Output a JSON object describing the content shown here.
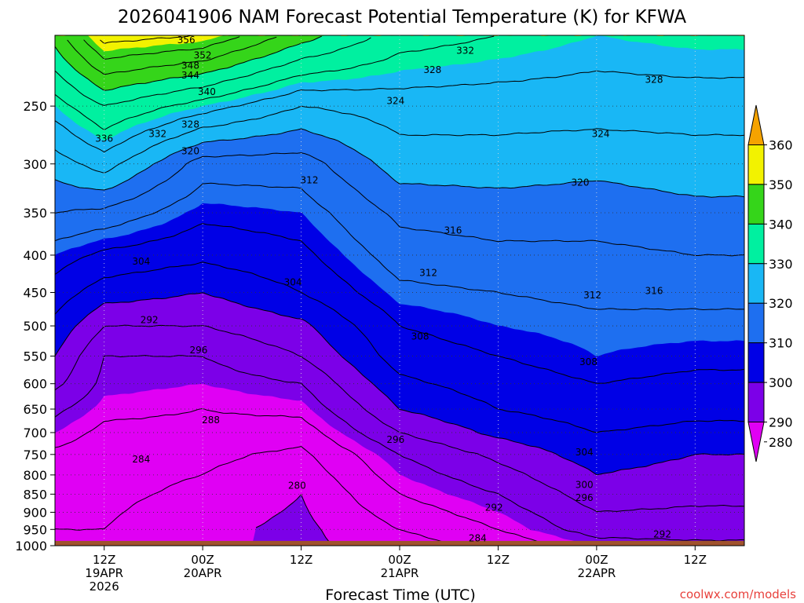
{
  "chart_data": {
    "type": "heatmap",
    "title": "2026041906 NAM Forecast Potential Temperature (K) for KFWA",
    "xlabel": "Forecast Time (UTC)",
    "ylabel": "",
    "credit": "coolwx.com/models",
    "y_scale": "log-pressure",
    "ylim_hpa": [
      1000,
      200
    ],
    "grid": true,
    "pressure_ticks": [
      "250",
      "300",
      "350",
      "400",
      "450",
      "500",
      "550",
      "600",
      "650",
      "700",
      "750",
      "800",
      "850",
      "900",
      "950",
      "1000"
    ],
    "pressure_values": [
      250,
      300,
      350,
      400,
      450,
      500,
      550,
      600,
      650,
      700,
      750,
      800,
      850,
      900,
      950,
      1000
    ],
    "time_ticks": [
      {
        "line1": "12Z",
        "line2": "19APR",
        "line3": "2026",
        "hour": 6
      },
      {
        "line1": "00Z",
        "line2": "20APR",
        "line3": "",
        "hour": 18
      },
      {
        "line1": "12Z",
        "line2": "",
        "line3": "",
        "hour": 30
      },
      {
        "line1": "00Z",
        "line2": "21APR",
        "line3": "",
        "hour": 42
      },
      {
        "line1": "12Z",
        "line2": "",
        "line3": "",
        "hour": 54
      },
      {
        "line1": "00Z",
        "line2": "22APR",
        "line3": "",
        "hour": 66
      },
      {
        "line1": "12Z",
        "line2": "",
        "line3": "",
        "hour": 78
      }
    ],
    "x_range_hours": [
      0,
      84
    ],
    "colorbar": {
      "labels": [
        "360",
        "350",
        "340",
        "330",
        "320",
        "310",
        "300",
        "290",
        "280"
      ],
      "levels": [
        280,
        290,
        300,
        310,
        320,
        330,
        340,
        350,
        360
      ],
      "colors": [
        "#e000f4",
        "#7c00e8",
        "#0000e6",
        "#1e6ff0",
        "#19b7f5",
        "#00f0a0",
        "#35d51a",
        "#f2f200",
        "#f5a300"
      ]
    },
    "contour_interval_K": 4,
    "theta_profiles_K": [
      {
        "hour": 0,
        "p": [
          1000,
          950,
          850,
          750,
          700,
          650,
          600,
          550,
          500,
          450,
          400,
          350,
          300,
          250,
          200
        ],
        "theta": [
          282,
          284,
          285,
          287,
          290,
          293,
          297,
          300,
          303,
          306,
          310,
          316,
          322,
          330,
          342
        ]
      },
      {
        "hour": 6,
        "p": [
          1000,
          950,
          850,
          750,
          700,
          650,
          600,
          550,
          500,
          450,
          400,
          350,
          300,
          250,
          200
        ],
        "theta": [
          282,
          284,
          285,
          286,
          287,
          289,
          291,
          292,
          296,
          302,
          307,
          315,
          326,
          336,
          354
        ]
      },
      {
        "hour": 18,
        "p": [
          1000,
          950,
          850,
          750,
          700,
          650,
          600,
          550,
          500,
          450,
          400,
          350,
          300,
          250,
          200
        ],
        "theta": [
          281,
          281,
          283,
          285,
          287,
          288,
          290,
          292,
          296,
          300,
          305,
          309,
          314,
          330,
          352
        ]
      },
      {
        "hour": 30,
        "p": [
          1000,
          950,
          850,
          750,
          700,
          650,
          600,
          550,
          500,
          450,
          400,
          350,
          300,
          250,
          200
        ],
        "theta": [
          279,
          279,
          280,
          283,
          286,
          289,
          292,
          296,
          299,
          304,
          307,
          310,
          314,
          324,
          342
        ]
      },
      {
        "hour": 42,
        "p": [
          1000,
          950,
          850,
          750,
          700,
          650,
          600,
          550,
          500,
          450,
          400,
          350,
          300,
          250,
          200
        ],
        "theta": [
          282,
          284,
          288,
          292,
          296,
          300,
          303,
          306,
          308,
          311,
          314,
          317,
          322,
          326,
          334
        ]
      },
      {
        "hour": 54,
        "p": [
          1000,
          950,
          850,
          750,
          700,
          650,
          600,
          550,
          500,
          450,
          400,
          350,
          300,
          250,
          200
        ],
        "theta": [
          285,
          288,
          292,
          297,
          301,
          304,
          306,
          308,
          310,
          312,
          315,
          318,
          322,
          326,
          332
        ]
      },
      {
        "hour": 66,
        "p": [
          1000,
          950,
          850,
          750,
          700,
          650,
          600,
          550,
          500,
          450,
          400,
          350,
          300,
          250,
          200
        ],
        "theta": [
          290,
          294,
          298,
          302,
          304,
          306,
          308,
          310,
          311,
          313,
          315,
          318,
          321,
          326,
          330
        ]
      },
      {
        "hour": 78,
        "p": [
          1000,
          950,
          850,
          750,
          700,
          650,
          600,
          550,
          500,
          450,
          400,
          350,
          300,
          250,
          200
        ],
        "theta": [
          291,
          294,
          297,
          300,
          303,
          305,
          307,
          309,
          311,
          313,
          316,
          319,
          322,
          326,
          331
        ]
      },
      {
        "hour": 84,
        "p": [
          1000,
          950,
          850,
          750,
          700,
          650,
          600,
          550,
          500,
          450,
          400,
          350,
          300,
          250,
          200
        ],
        "theta": [
          291,
          294,
          297,
          300,
          303,
          305,
          307,
          309,
          311,
          313,
          316,
          319,
          322,
          326,
          331
        ]
      }
    ],
    "contour_labels": [
      {
        "text": "356",
        "hour": 16.0,
        "p": 203
      },
      {
        "text": "352",
        "hour": 18.0,
        "p": 213
      },
      {
        "text": "348",
        "hour": 16.5,
        "p": 220
      },
      {
        "text": "344",
        "hour": 16.5,
        "p": 227
      },
      {
        "text": "340",
        "hour": 18.5,
        "p": 239
      },
      {
        "text": "336",
        "hour": 6.0,
        "p": 277
      },
      {
        "text": "332",
        "hour": 12.5,
        "p": 273
      },
      {
        "text": "328",
        "hour": 16.5,
        "p": 265
      },
      {
        "text": "320",
        "hour": 16.5,
        "p": 288
      },
      {
        "text": "312",
        "hour": 31.0,
        "p": 316
      },
      {
        "text": "332",
        "hour": 50.0,
        "p": 210
      },
      {
        "text": "328",
        "hour": 46.0,
        "p": 223
      },
      {
        "text": "324",
        "hour": 41.5,
        "p": 246
      },
      {
        "text": "328",
        "hour": 73.0,
        "p": 230
      },
      {
        "text": "324",
        "hour": 66.5,
        "p": 273
      },
      {
        "text": "320",
        "hour": 64.0,
        "p": 318
      },
      {
        "text": "316",
        "hour": 48.5,
        "p": 370
      },
      {
        "text": "312",
        "hour": 45.5,
        "p": 423
      },
      {
        "text": "312",
        "hour": 65.5,
        "p": 454
      },
      {
        "text": "316",
        "hour": 73.0,
        "p": 448
      },
      {
        "text": "304",
        "hour": 10.5,
        "p": 408
      },
      {
        "text": "304",
        "hour": 29.0,
        "p": 436
      },
      {
        "text": "308",
        "hour": 44.5,
        "p": 517
      },
      {
        "text": "308",
        "hour": 65.0,
        "p": 560
      },
      {
        "text": "292",
        "hour": 11.5,
        "p": 491
      },
      {
        "text": "296",
        "hour": 17.5,
        "p": 540
      },
      {
        "text": "288",
        "hour": 19.0,
        "p": 673
      },
      {
        "text": "296",
        "hour": 41.5,
        "p": 716
      },
      {
        "text": "304",
        "hour": 64.5,
        "p": 745
      },
      {
        "text": "284",
        "hour": 10.5,
        "p": 762
      },
      {
        "text": "280",
        "hour": 29.5,
        "p": 827
      },
      {
        "text": "300",
        "hour": 64.5,
        "p": 825
      },
      {
        "text": "296",
        "hour": 64.5,
        "p": 860
      },
      {
        "text": "292",
        "hour": 53.5,
        "p": 887
      },
      {
        "text": "284",
        "hour": 51.5,
        "p": 977
      },
      {
        "text": "292",
        "hour": 74.0,
        "p": 965
      }
    ],
    "terrain_below_hpa": 985
  }
}
